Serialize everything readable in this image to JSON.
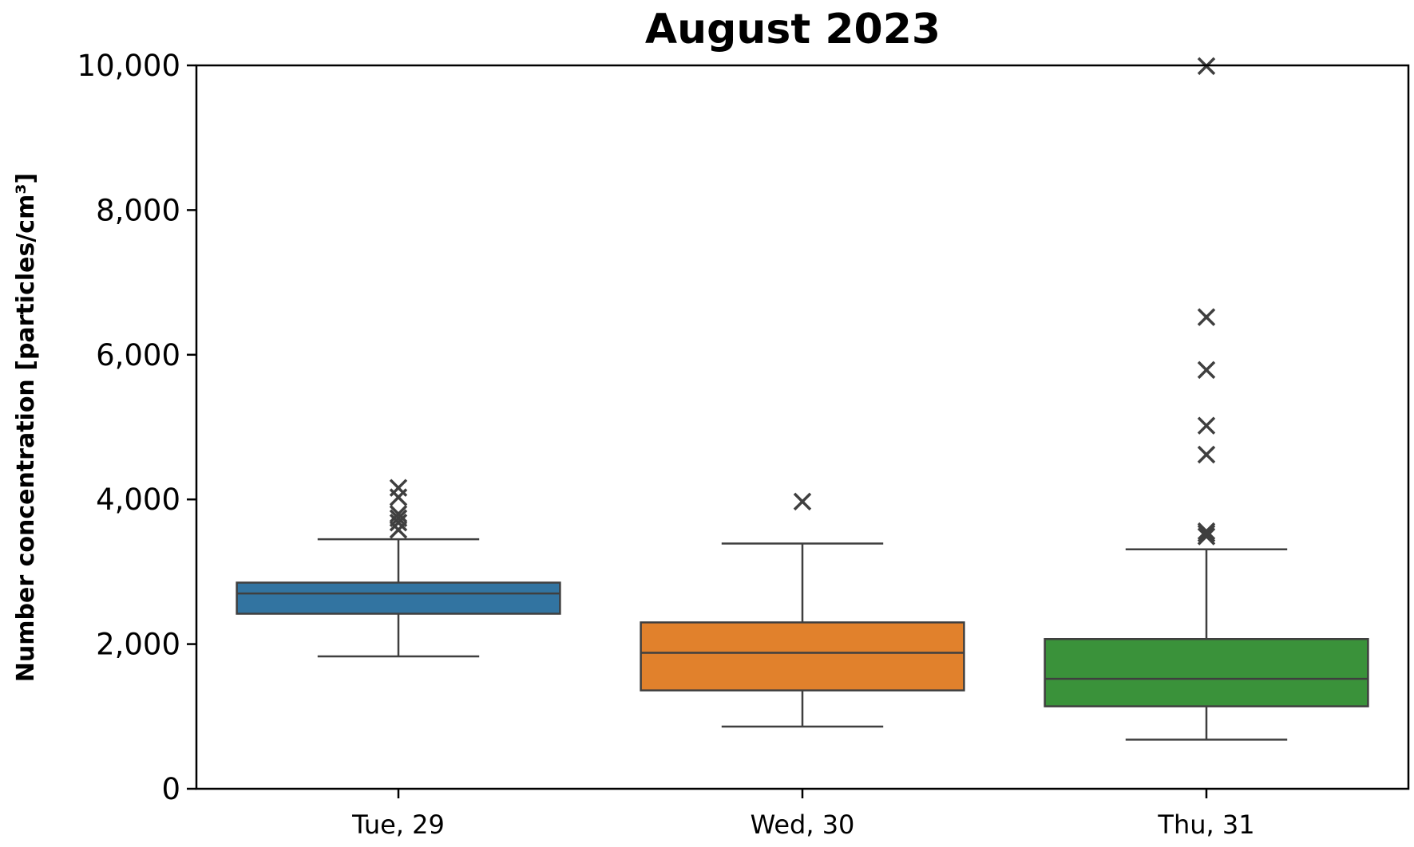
{
  "chart_data": {
    "type": "box",
    "title": "August 2023",
    "xlabel": "",
    "ylabel": "Number concentration [particles/cm³]",
    "ylim": [
      0,
      10000
    ],
    "yticks": [
      0,
      2000,
      4000,
      6000,
      8000,
      10000
    ],
    "ytick_labels": [
      "0",
      "2,000",
      "4,000",
      "6,000",
      "8,000",
      "10,000"
    ],
    "grid": false,
    "categories": [
      "Tue, 29",
      "Wed, 30",
      "Thu, 31"
    ],
    "boxes": [
      {
        "category": "Tue, 29",
        "color": "#3274a1",
        "whisker_low": 1830,
        "q1": 2420,
        "median": 2700,
        "q3": 2850,
        "whisker_high": 3450,
        "outliers": [
          3580,
          3680,
          3740,
          3800,
          4030,
          4160
        ]
      },
      {
        "category": "Wed, 30",
        "color": "#e1812c",
        "whisker_low": 860,
        "q1": 1360,
        "median": 1880,
        "q3": 2300,
        "whisker_high": 3390,
        "outliers": [
          3970
        ]
      },
      {
        "category": "Thu, 31",
        "color": "#3a923a",
        "whisker_low": 680,
        "q1": 1140,
        "median": 1520,
        "q3": 2070,
        "whisker_high": 3310,
        "outliers": [
          3490,
          3530,
          3560,
          4620,
          5020,
          5790,
          6520,
          9990
        ]
      }
    ],
    "colors": {
      "box_edge": "#3f3f3f",
      "outlier": "#3f3f3f",
      "axis": "#000000"
    }
  }
}
